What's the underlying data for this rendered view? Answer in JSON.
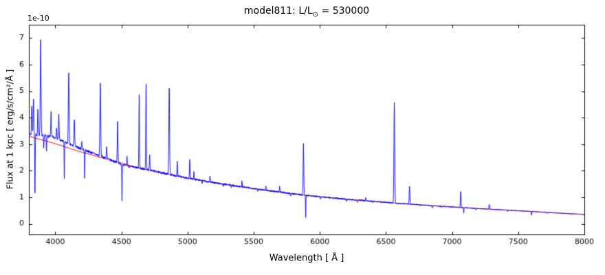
{
  "chart_data": {
    "type": "line",
    "title": "model811: L/L⊙ = 530000",
    "title_parts": {
      "prefix": "model811: L/L",
      "sub": "⊙",
      "suffix": " = 530000"
    },
    "xlabel": "Wavelength [ Å ]",
    "ylabel": "Flux at 1 kpc [ erg/s/cm²/Å ]",
    "offset_text": "1e-10",
    "xlim": [
      3800,
      8000
    ],
    "ylim": [
      -0.4,
      7.5
    ],
    "x_ticks": [
      4000,
      4500,
      5000,
      5500,
      6000,
      6500,
      7000,
      7500,
      8000
    ],
    "y_ticks": [
      0,
      1,
      2,
      3,
      4,
      5,
      6,
      7
    ],
    "axis_color": "#000000",
    "grid": false,
    "legend": "none",
    "series": [
      {
        "name": "model-spectrum",
        "color": "#0000ff",
        "line_width": 0.9,
        "continuum_offset": {
          "x": [
            3800,
            3900,
            4000,
            4100,
            4250,
            4400,
            4520,
            4700,
            5000,
            8000
          ],
          "y": [
            0.08,
            0.18,
            0.22,
            0.15,
            0.1,
            0.02,
            -0.05,
            0.01,
            0.0,
            0.0
          ]
        },
        "lines_note": "each entry is [center_angstrom, peak_delta_flux_1e-10, sigma_angstrom]; positive=emission, negative=absorption",
        "lines": [
          [
            3822,
            1.1,
            2.5
          ],
          [
            3835,
            1.4,
            2.5
          ],
          [
            3846,
            -2.3,
            1.8
          ],
          [
            3868,
            1.0,
            2.2
          ],
          [
            3889,
            3.7,
            2.8
          ],
          [
            3912,
            -0.5,
            1.8
          ],
          [
            3933,
            -0.6,
            1.8
          ],
          [
            3968,
            1.0,
            2.5
          ],
          [
            4009,
            0.45,
            2
          ],
          [
            4026,
            0.95,
            2.5
          ],
          [
            4068,
            -1.5,
            1.5
          ],
          [
            4101,
            2.75,
            2.8
          ],
          [
            4144,
            1.05,
            2.5
          ],
          [
            4200,
            0.3,
            2
          ],
          [
            4222,
            -1.1,
            1.5
          ],
          [
            4340,
            2.7,
            3
          ],
          [
            4388,
            0.45,
            2.2
          ],
          [
            4471,
            1.6,
            2.5
          ],
          [
            4504,
            -1.45,
            1.5
          ],
          [
            4542,
            0.35,
            2
          ],
          [
            4634,
            2.75,
            2.2
          ],
          [
            4686,
            3.25,
            2.2
          ],
          [
            4713,
            0.55,
            2
          ],
          [
            4861,
            3.3,
            2.8
          ],
          [
            4922,
            0.55,
            2.2
          ],
          [
            5016,
            0.7,
            2.2
          ],
          [
            5048,
            0.3,
            2
          ],
          [
            5110,
            -0.08,
            2
          ],
          [
            5169,
            0.25,
            2
          ],
          [
            5270,
            -0.1,
            2
          ],
          [
            5330,
            -0.07,
            2
          ],
          [
            5411,
            0.22,
            2
          ],
          [
            5530,
            -0.06,
            2
          ],
          [
            5592,
            0.15,
            2
          ],
          [
            5696,
            0.2,
            2
          ],
          [
            5780,
            -0.1,
            2
          ],
          [
            5876,
            1.95,
            2.5
          ],
          [
            5893,
            -0.9,
            1.5
          ],
          [
            6004,
            -0.08,
            2
          ],
          [
            6100,
            -0.06,
            2
          ],
          [
            6203,
            -0.08,
            2
          ],
          [
            6284,
            -0.1,
            2
          ],
          [
            6347,
            0.12,
            2
          ],
          [
            6400,
            -0.06,
            2
          ],
          [
            6563,
            3.78,
            3
          ],
          [
            6678,
            0.7,
            2.5
          ],
          [
            6850,
            -0.1,
            2.5
          ],
          [
            6920,
            -0.05,
            2
          ],
          [
            7065,
            0.62,
            2.5
          ],
          [
            7088,
            -0.18,
            1.8
          ],
          [
            7180,
            -0.05,
            2
          ],
          [
            7281,
            0.2,
            2.5
          ],
          [
            7420,
            -0.05,
            2
          ],
          [
            7600,
            -0.13,
            2
          ],
          [
            7720,
            -0.04,
            2
          ],
          [
            7900,
            -0.04,
            2
          ]
        ],
        "noise": {
          "amp_start": 0.055,
          "amp_end": 0.008,
          "seed": 7
        }
      },
      {
        "name": "continuum-fit",
        "color": "#ff0000",
        "line_width": 1.0,
        "anchors": {
          "x": [
            3800,
            4000,
            4200,
            4400,
            4600,
            4800,
            5000,
            5200,
            5400,
            5600,
            5800,
            6000,
            6200,
            6400,
            6600,
            6800,
            7000,
            7200,
            7400,
            7600,
            7800,
            8000
          ],
          "y": [
            3.3,
            3.02,
            2.7,
            2.42,
            2.15,
            1.92,
            1.72,
            1.55,
            1.4,
            1.26,
            1.13,
            1.02,
            0.93,
            0.85,
            0.77,
            0.7,
            0.635,
            0.575,
            0.52,
            0.465,
            0.405,
            0.355
          ]
        }
      }
    ]
  }
}
